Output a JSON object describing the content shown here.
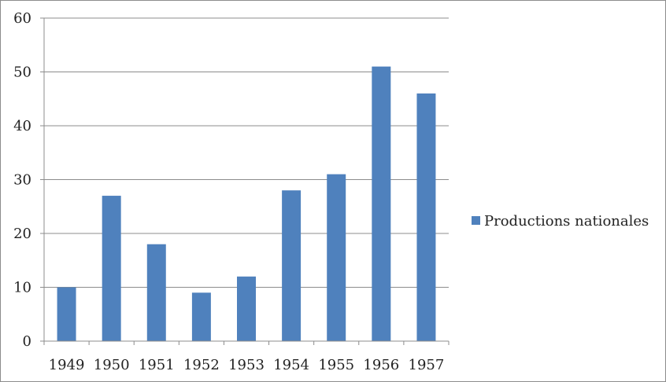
{
  "chart_data": {
    "type": "bar",
    "title": "",
    "xlabel": "",
    "ylabel": "",
    "categories": [
      "1949",
      "1950",
      "1951",
      "1952",
      "1953",
      "1954",
      "1955",
      "1956",
      "1957"
    ],
    "series": [
      {
        "name": "Productions nationales",
        "color": "#4f81bd",
        "values": [
          10,
          27,
          18,
          9,
          12,
          28,
          31,
          51,
          46
        ]
      }
    ],
    "ylim": [
      0,
      60
    ],
    "yticks": [
      "0",
      "10",
      "20",
      "30",
      "40",
      "50",
      "60"
    ],
    "grid": true,
    "legend_position": "right"
  }
}
